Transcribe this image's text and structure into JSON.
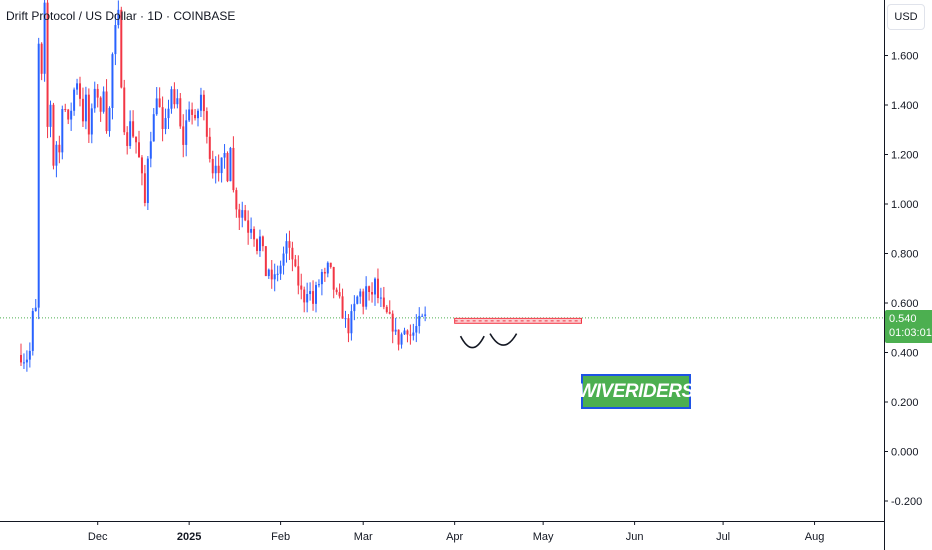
{
  "header": {
    "symbol_title": "Drift Protocol / US Dollar · 1D · COINBASE",
    "currency": "USD"
  },
  "watermark": {
    "text": "WIVERIDERS"
  },
  "price_tag": {
    "price": "0.540",
    "countdown": "01:03:01"
  },
  "colors": {
    "up": "#2962ff",
    "down": "#f23645",
    "last_price": "#4caf50",
    "resistance_zone": "#f7a6ac",
    "pattern_curve": "#131722"
  },
  "chart_data": {
    "type": "candlestick",
    "title": "Drift Protocol / US Dollar · 1D · COINBASE",
    "y_unit": "USD",
    "ylim": [
      -0.25,
      1.75
    ],
    "y_ticks": [
      -0.2,
      0.0,
      0.2,
      0.4,
      0.6,
      0.8,
      1.0,
      1.2,
      1.4,
      1.6
    ],
    "y_tick_labels": [
      "-0.200",
      "0.000",
      "0.200",
      "0.400",
      "0.600",
      "0.800",
      "1.000",
      "1.200",
      "1.400",
      "1.600"
    ],
    "x_ticks": [
      {
        "label": "Dec",
        "day": 6
      },
      {
        "label": "2025",
        "day": 37
      },
      {
        "label": "Feb",
        "day": 68
      },
      {
        "label": "Mar",
        "day": 96
      },
      {
        "label": "Apr",
        "day": 127
      },
      {
        "label": "May",
        "day": 157
      },
      {
        "label": "Jun",
        "day": 188
      },
      {
        "label": "Jul",
        "day": 218
      },
      {
        "label": "Aug",
        "day": 249
      }
    ],
    "last_price": 0.54,
    "resistance_zone": {
      "day_start": 127,
      "day_end": 170,
      "low": 0.518,
      "high": 0.538
    },
    "pattern_lows": [
      {
        "day_start": 129,
        "day_end": 137,
        "price": 0.43
      },
      {
        "day_start": 139,
        "day_end": 148,
        "price": 0.44
      }
    ],
    "close_path": [
      [
        -20,
        0.39
      ],
      [
        -17,
        0.4
      ],
      [
        -16,
        0.52
      ],
      [
        -15,
        0.55
      ],
      [
        -14,
        1.62
      ],
      [
        -13,
        1.48
      ],
      [
        -12,
        1.75
      ],
      [
        -11,
        1.3
      ],
      [
        -10,
        1.42
      ],
      [
        -9,
        1.18
      ],
      [
        -8,
        1.25
      ],
      [
        -7,
        1.2
      ],
      [
        -6,
        1.45
      ],
      [
        -5,
        1.38
      ],
      [
        -4,
        1.28
      ],
      [
        -3,
        1.4
      ],
      [
        -1,
        1.52
      ],
      [
        1,
        1.35
      ],
      [
        2,
        1.42
      ],
      [
        3,
        1.28
      ],
      [
        4,
        1.36
      ],
      [
        5,
        1.48
      ],
      [
        6,
        1.44
      ],
      [
        7,
        1.35
      ],
      [
        8,
        1.48
      ],
      [
        9,
        1.32
      ],
      [
        10,
        1.38
      ],
      [
        11,
        1.6
      ],
      [
        12,
        1.7
      ],
      [
        13,
        1.76
      ],
      [
        14,
        1.5
      ],
      [
        15,
        1.32
      ],
      [
        16,
        1.22
      ],
      [
        17,
        1.35
      ],
      [
        18,
        1.28
      ],
      [
        19,
        1.25
      ],
      [
        20,
        1.18
      ],
      [
        21,
        1.1
      ],
      [
        22,
        1.0
      ],
      [
        23,
        1.2
      ],
      [
        24,
        1.28
      ],
      [
        25,
        1.35
      ],
      [
        26,
        1.45
      ],
      [
        27,
        1.38
      ],
      [
        28,
        1.28
      ],
      [
        29,
        1.32
      ],
      [
        30,
        1.4
      ],
      [
        31,
        1.47
      ],
      [
        32,
        1.38
      ],
      [
        33,
        1.42
      ],
      [
        34,
        1.3
      ],
      [
        35,
        1.25
      ],
      [
        36,
        1.33
      ],
      [
        37,
        1.4
      ],
      [
        38,
        1.36
      ],
      [
        39,
        1.32
      ],
      [
        40,
        1.38
      ],
      [
        41,
        1.44
      ],
      [
        42,
        1.36
      ],
      [
        43,
        1.3
      ],
      [
        44,
        1.2
      ],
      [
        45,
        1.14
      ],
      [
        46,
        1.18
      ],
      [
        47,
        1.1
      ],
      [
        48,
        1.16
      ],
      [
        49,
        1.2
      ],
      [
        50,
        1.12
      ],
      [
        51,
        1.25
      ],
      [
        52,
        1.05
      ],
      [
        53,
        1.0
      ],
      [
        54,
        0.96
      ],
      [
        55,
        0.98
      ],
      [
        56,
        0.94
      ],
      [
        57,
        0.9
      ],
      [
        58,
        0.92
      ],
      [
        59,
        0.88
      ],
      [
        60,
        0.83
      ],
      [
        61,
        0.86
      ],
      [
        62,
        0.8
      ],
      [
        63,
        0.72
      ],
      [
        64,
        0.74
      ],
      [
        65,
        0.67
      ],
      [
        66,
        0.72
      ],
      [
        67,
        0.7
      ],
      [
        68,
        0.76
      ],
      [
        69,
        0.8
      ],
      [
        70,
        0.84
      ],
      [
        71,
        0.8
      ],
      [
        72,
        0.78
      ],
      [
        73,
        0.72
      ],
      [
        74,
        0.68
      ],
      [
        75,
        0.64
      ],
      [
        76,
        0.62
      ],
      [
        77,
        0.66
      ],
      [
        78,
        0.64
      ],
      [
        79,
        0.6
      ],
      [
        80,
        0.65
      ],
      [
        81,
        0.68
      ],
      [
        82,
        0.72
      ],
      [
        83,
        0.7
      ],
      [
        84,
        0.74
      ],
      [
        85,
        0.72
      ],
      [
        86,
        0.66
      ],
      [
        87,
        0.62
      ],
      [
        88,
        0.6
      ],
      [
        89,
        0.56
      ],
      [
        90,
        0.52
      ],
      [
        91,
        0.5
      ],
      [
        92,
        0.54
      ],
      [
        93,
        0.58
      ],
      [
        94,
        0.62
      ],
      [
        95,
        0.64
      ],
      [
        96,
        0.6
      ],
      [
        97,
        0.66
      ],
      [
        98,
        0.62
      ],
      [
        99,
        0.64
      ],
      [
        100,
        0.68
      ],
      [
        101,
        0.62
      ],
      [
        102,
        0.6
      ],
      [
        103,
        0.56
      ],
      [
        104,
        0.55
      ],
      [
        105,
        0.53
      ],
      [
        106,
        0.51
      ],
      [
        107,
        0.47
      ],
      [
        108,
        0.45
      ],
      [
        109,
        0.47
      ],
      [
        110,
        0.49
      ],
      [
        111,
        0.5
      ],
      [
        112,
        0.47
      ],
      [
        113,
        0.48
      ],
      [
        114,
        0.5
      ],
      [
        115,
        0.52
      ],
      [
        116,
        0.53
      ],
      [
        117,
        0.54
      ]
    ]
  }
}
